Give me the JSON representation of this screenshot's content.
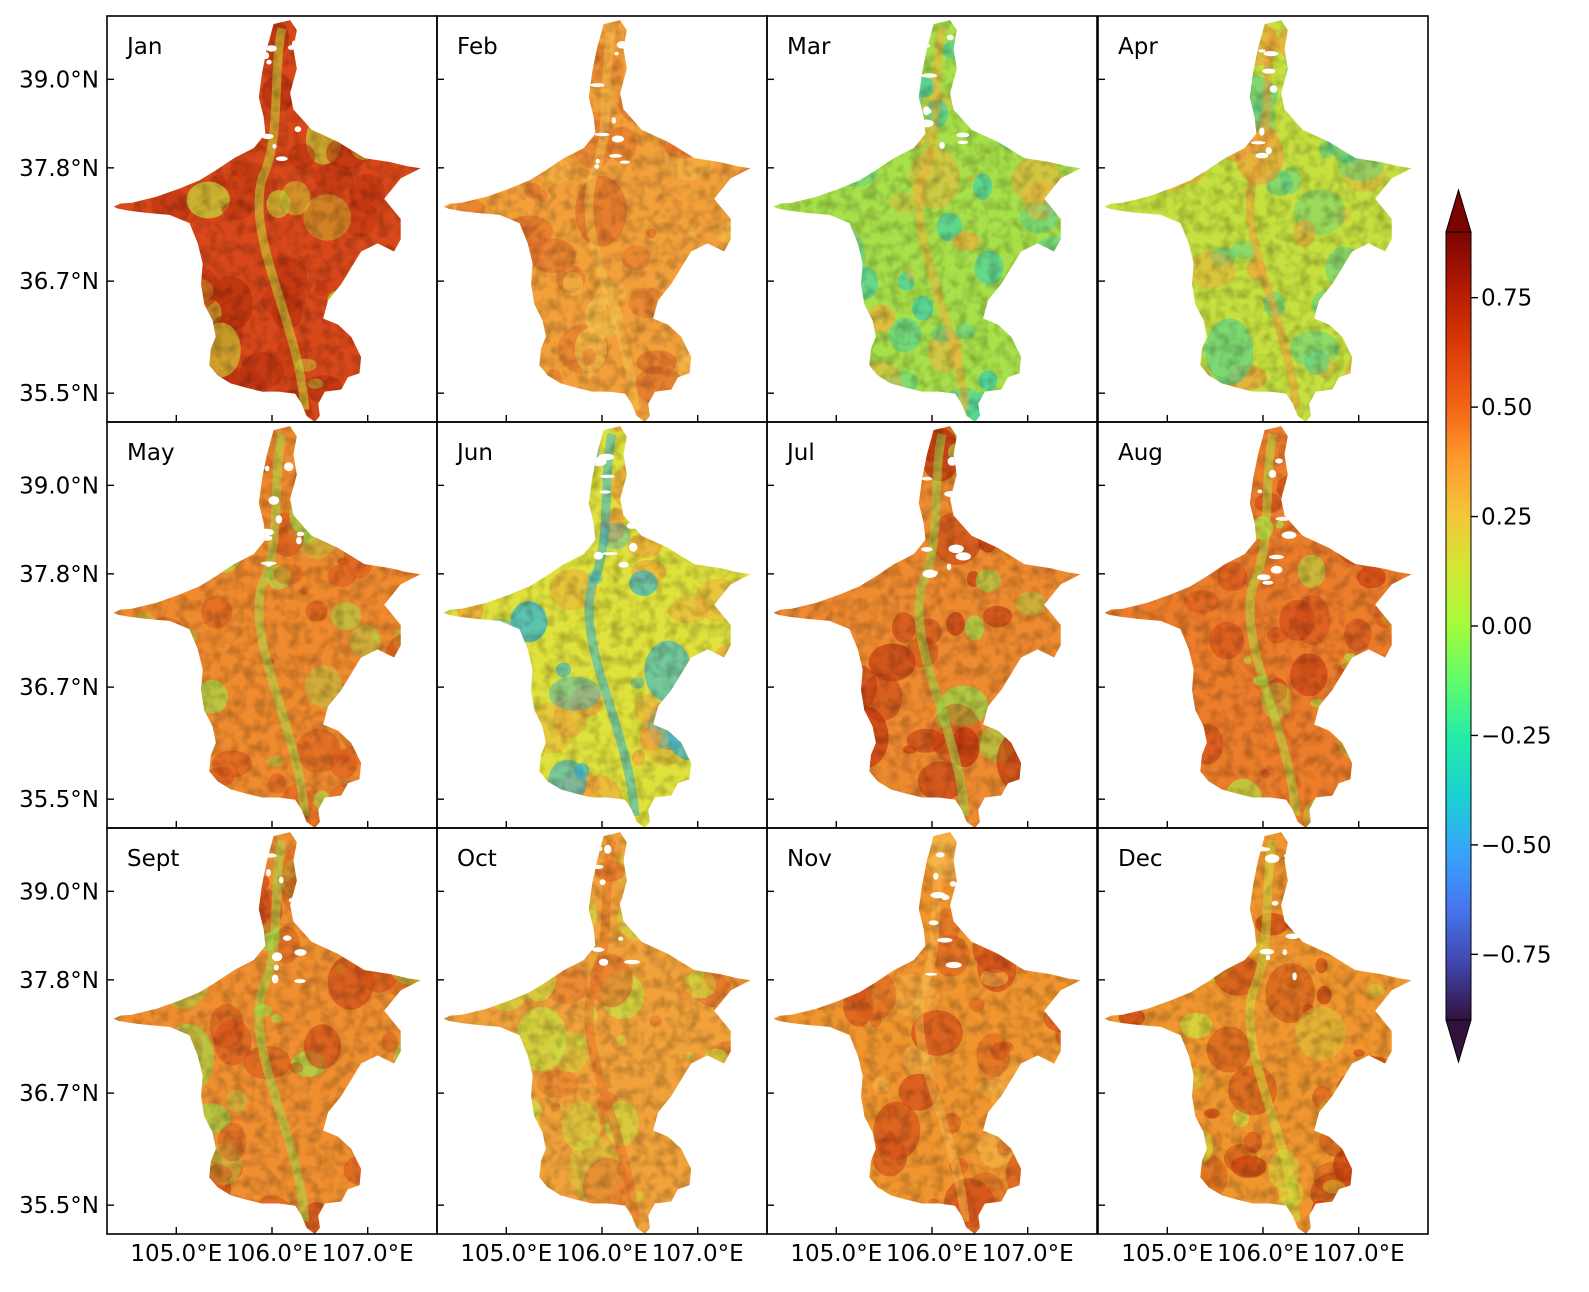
{
  "figure": {
    "panels": [
      {
        "label": "Jan",
        "hue": "#d9481a",
        "texture": "#b8310e",
        "accent": "#c7e23b"
      },
      {
        "label": "Feb",
        "hue": "#f3a03a",
        "texture": "#e2702a",
        "accent": "#f7c04a"
      },
      {
        "label": "Mar",
        "hue": "#a8e04a",
        "texture": "#3ad2b0",
        "accent": "#f1b23a"
      },
      {
        "label": "Apr",
        "hue": "#c5e03f",
        "texture": "#5ad48a",
        "accent": "#f3a03a"
      },
      {
        "label": "May",
        "hue": "#ef8a2e",
        "texture": "#dc5a1c",
        "accent": "#a8e04a"
      },
      {
        "label": "Jun",
        "hue": "#dfe13c",
        "texture": "#f3a03a",
        "accent": "#2fb8d8"
      },
      {
        "label": "Jul",
        "hue": "#ee8a2f",
        "texture": "#c2360f",
        "accent": "#9fdc4a"
      },
      {
        "label": "Aug",
        "hue": "#ec7d2a",
        "texture": "#cf4416",
        "accent": "#b3e043"
      },
      {
        "label": "Sept",
        "hue": "#ef8f30",
        "texture": "#d24c18",
        "accent": "#a3df4a"
      },
      {
        "label": "Oct",
        "hue": "#f2a23a",
        "texture": "#c9e140",
        "accent": "#e8742a"
      },
      {
        "label": "Nov",
        "hue": "#f1962f",
        "texture": "#d4501a",
        "accent": "#f7b84a"
      },
      {
        "label": "Dec",
        "hue": "#f0962f",
        "texture": "#c8400f",
        "accent": "#d2e23e"
      }
    ],
    "y_tick_labels": [
      "39.0°N",
      "37.8°N",
      "36.7°N",
      "35.5°N"
    ],
    "x_tick_labels": [
      "105.0°E",
      "106.0°E",
      "107.0°E"
    ],
    "colorbar": {
      "tick_labels": [
        "0.75",
        "0.50",
        "0.25",
        "0.00",
        "−0.25",
        "−0.50",
        "−0.75"
      ],
      "tick_values": [
        0.75,
        0.5,
        0.25,
        0.0,
        -0.25,
        -0.5,
        -0.75
      ],
      "range": [
        -0.9,
        0.9
      ],
      "colormap": "turbo",
      "extend": "both"
    }
  }
}
